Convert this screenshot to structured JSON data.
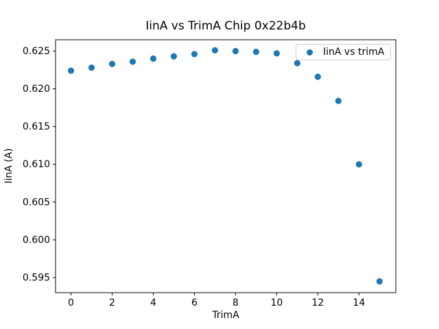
{
  "chart_data": {
    "type": "scatter",
    "title": "IinA vs TrimA Chip 0x22b4b",
    "xlabel": "TrimA",
    "ylabel": "IinA (A)",
    "legend": {
      "position": "upper right",
      "entries": [
        "IinA vs trimA"
      ]
    },
    "series": [
      {
        "name": "IinA vs trimA",
        "x": [
          0,
          1,
          2,
          3,
          4,
          5,
          6,
          7,
          8,
          9,
          10,
          11,
          12,
          13,
          14,
          15
        ],
        "y": [
          0.6224,
          0.6228,
          0.6233,
          0.6236,
          0.624,
          0.6243,
          0.6246,
          0.6251,
          0.625,
          0.6249,
          0.6247,
          0.6234,
          0.6216,
          0.6184,
          0.61,
          0.5945
        ]
      }
    ],
    "xlim": [
      -0.75,
      15.79
    ],
    "ylim": [
      0.593,
      0.6265
    ],
    "xticks": [
      0,
      2,
      4,
      6,
      8,
      10,
      12,
      14
    ],
    "xtick_labels": [
      "0",
      "2",
      "4",
      "6",
      "8",
      "10",
      "12",
      "14"
    ],
    "yticks": [
      0.595,
      0.6,
      0.605,
      0.61,
      0.615,
      0.62,
      0.625
    ],
    "ytick_labels": [
      "0.595",
      "0.600",
      "0.605",
      "0.610",
      "0.615",
      "0.620",
      "0.625"
    ],
    "grid": false,
    "marker_color": "#1f77b4",
    "marker_radius": 4.6,
    "axis_color": "#000000",
    "background_color": "#ffffff"
  }
}
